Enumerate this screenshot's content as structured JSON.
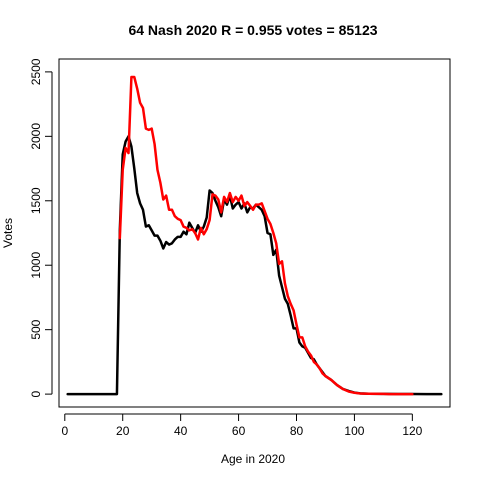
{
  "chart_data": {
    "type": "line",
    "title": "64 Nash 2020 R = 0.955 votes = 85123",
    "xlabel": "Age in 2020",
    "ylabel": "Votes",
    "xlim": [
      -2,
      133
    ],
    "ylim": [
      -100,
      2600
    ],
    "x_ticks": [
      0,
      20,
      40,
      60,
      80,
      100,
      120
    ],
    "y_ticks": [
      0,
      500,
      1000,
      1500,
      2000,
      2500
    ],
    "grid": false,
    "legend": "none",
    "series": [
      {
        "color": "#000000",
        "x": [
          1,
          18,
          19,
          20,
          21,
          22,
          23,
          24,
          25,
          26,
          27,
          28,
          29,
          30,
          31,
          32,
          33,
          34,
          35,
          36,
          37,
          38,
          39,
          40,
          41,
          42,
          43,
          44,
          45,
          46,
          47,
          48,
          49,
          50,
          51,
          52,
          53,
          54,
          55,
          56,
          57,
          58,
          59,
          60,
          61,
          62,
          63,
          64,
          65,
          66,
          67,
          68,
          69,
          70,
          71,
          72,
          73,
          74,
          75,
          76,
          77,
          78,
          79,
          80,
          81,
          82,
          83,
          84,
          85,
          86,
          87,
          88,
          89,
          90,
          92,
          94,
          96,
          98,
          100,
          102,
          105,
          110,
          115,
          120,
          125,
          130
        ],
        "y": [
          0,
          0,
          1270,
          1860,
          1960,
          2000,
          1920,
          1750,
          1560,
          1480,
          1430,
          1300,
          1310,
          1270,
          1230,
          1230,
          1190,
          1130,
          1180,
          1160,
          1170,
          1200,
          1220,
          1220,
          1260,
          1240,
          1330,
          1290,
          1250,
          1310,
          1260,
          1300,
          1370,
          1580,
          1560,
          1500,
          1450,
          1380,
          1510,
          1470,
          1540,
          1440,
          1470,
          1490,
          1440,
          1480,
          1410,
          1450,
          1440,
          1470,
          1450,
          1430,
          1380,
          1250,
          1240,
          1080,
          1120,
          920,
          830,
          740,
          700,
          610,
          510,
          510,
          400,
          370,
          360,
          320,
          280,
          270,
          230,
          200,
          170,
          140,
          110,
          70,
          40,
          25,
          12,
          6,
          3,
          2,
          1,
          1,
          0,
          0
        ]
      },
      {
        "color": "#ff0000",
        "x": [
          19,
          20,
          21,
          22,
          23,
          24,
          25,
          26,
          27,
          28,
          29,
          30,
          31,
          32,
          33,
          34,
          35,
          36,
          37,
          38,
          39,
          40,
          41,
          42,
          43,
          44,
          45,
          46,
          47,
          48,
          49,
          50,
          51,
          52,
          53,
          54,
          55,
          56,
          57,
          58,
          59,
          60,
          61,
          62,
          63,
          64,
          65,
          66,
          67,
          68,
          69,
          70,
          71,
          72,
          73,
          74,
          75,
          76,
          77,
          78,
          79,
          80,
          81,
          82,
          83,
          84,
          85,
          86,
          87,
          88,
          89,
          90,
          92,
          94,
          96,
          98,
          100,
          102,
          105,
          110,
          112,
          120
        ],
        "y": [
          1210,
          1740,
          1910,
          1870,
          2460,
          2460,
          2370,
          2260,
          2220,
          2060,
          2050,
          2060,
          1940,
          1740,
          1640,
          1510,
          1540,
          1430,
          1430,
          1380,
          1360,
          1350,
          1300,
          1290,
          1270,
          1280,
          1250,
          1200,
          1290,
          1240,
          1280,
          1350,
          1550,
          1540,
          1510,
          1410,
          1530,
          1490,
          1560,
          1490,
          1530,
          1500,
          1540,
          1460,
          1490,
          1460,
          1430,
          1470,
          1470,
          1480,
          1420,
          1360,
          1320,
          1250,
          1170,
          1010,
          1030,
          860,
          760,
          700,
          650,
          540,
          440,
          440,
          370,
          330,
          300,
          250,
          230,
          200,
          160,
          140,
          110,
          70,
          40,
          20,
          10,
          5,
          3,
          2,
          0,
          0
        ]
      }
    ]
  }
}
